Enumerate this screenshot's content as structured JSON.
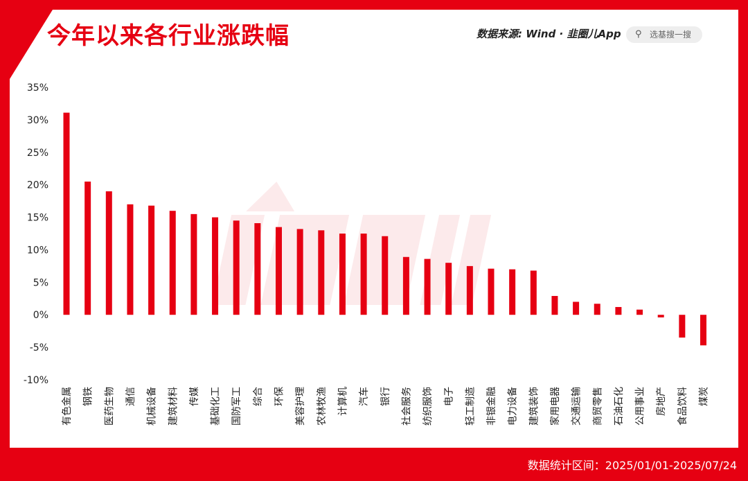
{
  "header": {
    "title": "今年以来各行业涨跌幅",
    "source_label": "数据来源: Wind · 韭圈儿App",
    "search_placeholder": "选基搜一搜"
  },
  "footer": {
    "note": "数据统计区间：2025/01/01-2025/07/24"
  },
  "colors": {
    "accent": "#e60012",
    "bar": "#e60012",
    "background": "#ffffff"
  },
  "icons": {
    "search": "search-icon"
  },
  "chart_data": {
    "type": "bar",
    "title": "今年以来各行业涨跌幅",
    "xlabel": "",
    "ylabel": "",
    "ylim": [
      -10,
      35
    ],
    "yticks": [
      35,
      30,
      25,
      20,
      15,
      10,
      5,
      0,
      -5,
      -10
    ],
    "ytick_labels": [
      "35%",
      "30%",
      "25%",
      "20%",
      "15%",
      "10%",
      "5%",
      "0%",
      "-5%",
      "-10%"
    ],
    "grid": false,
    "legend": "none",
    "categories": [
      "有色金属",
      "钢铁",
      "医药生物",
      "通信",
      "机械设备",
      "建筑材料",
      "传媒",
      "基础化工",
      "国防军工",
      "综合",
      "环保",
      "美容护理",
      "农林牧渔",
      "计算机",
      "汽车",
      "银行",
      "社会服务",
      "纺织服饰",
      "电子",
      "轻工制造",
      "非银金融",
      "电力设备",
      "建筑装饰",
      "家用电器",
      "交通运输",
      "商贸零售",
      "石油石化",
      "公用事业",
      "房地产",
      "食品饮料",
      "煤炭"
    ],
    "values": [
      31.1,
      20.5,
      19.0,
      17.0,
      16.8,
      16.0,
      15.5,
      15.0,
      14.5,
      14.1,
      13.5,
      13.2,
      13.0,
      12.5,
      12.5,
      12.1,
      8.9,
      8.6,
      8.0,
      7.5,
      7.1,
      7.0,
      6.8,
      2.9,
      2.0,
      1.7,
      1.2,
      0.8,
      -0.4,
      -3.5,
      -4.7
    ]
  }
}
